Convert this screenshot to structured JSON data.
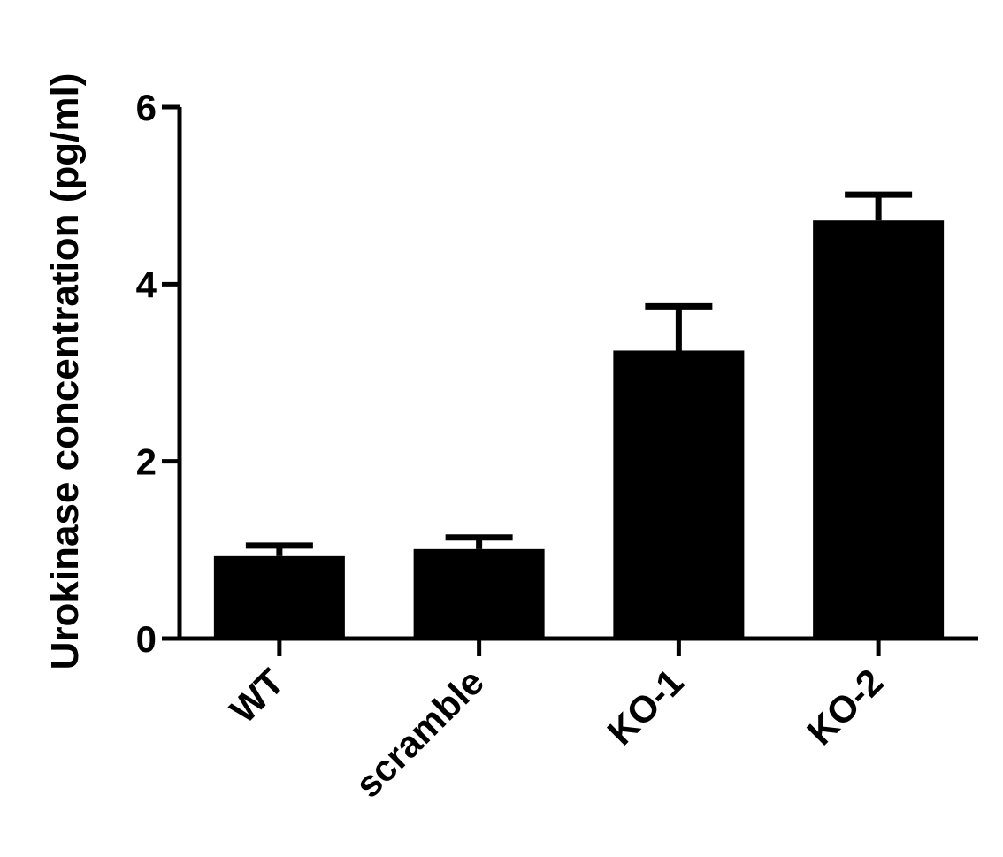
{
  "chart_data": {
    "type": "bar",
    "title": "",
    "xlabel": "",
    "ylabel": "Urokinase concentration (pg/ml)",
    "categories": [
      "WT",
      "scramble",
      "KO-1",
      "KO-2"
    ],
    "values": [
      0.93,
      1.01,
      3.25,
      4.72
    ],
    "error_upper": [
      1.05,
      1.14,
      3.75,
      5.01
    ],
    "ylim": [
      0,
      6
    ],
    "yticks": [
      "0",
      "2",
      "4",
      "6"
    ],
    "ytick_values": [
      0,
      2,
      4,
      6
    ],
    "grid": false,
    "legend": "none",
    "bar_color": "#000000"
  }
}
